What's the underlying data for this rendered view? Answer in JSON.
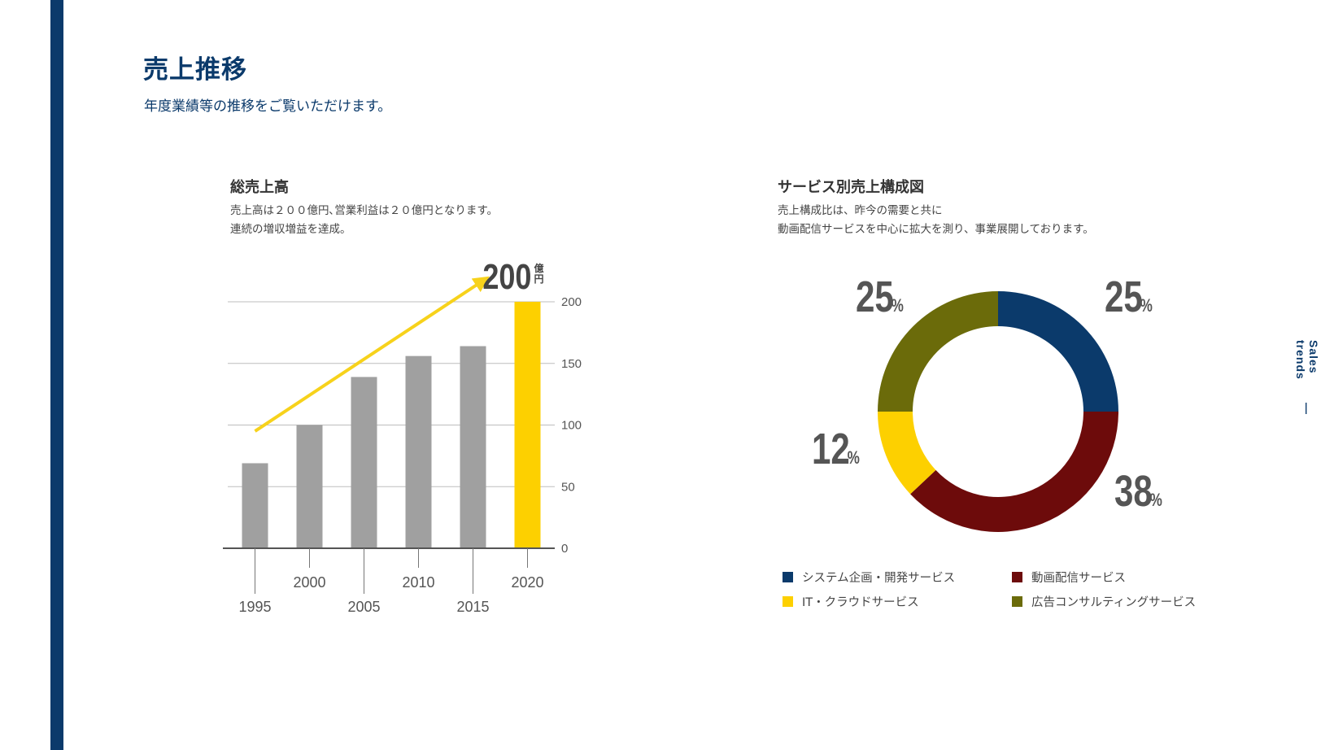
{
  "header": {
    "title": "売上推移",
    "subtitle": "年度業績等の推移をご覧いただけます。"
  },
  "side_tag": "Sales trends",
  "sections": {
    "sales": {
      "title": "総売上高",
      "desc": [
        "売上高は２００億円､営業利益は２０億円となります。",
        "連続の増収増益を達成。"
      ]
    },
    "composition": {
      "title": "サービス別売上構成図",
      "desc": [
        "売上構成比は、昨今の需要と共に",
        "動画配信サービスを中心に拡大を測り、事業展開しております。"
      ]
    }
  },
  "chart_data": [
    {
      "type": "bar",
      "title": "総売上高",
      "categories": [
        "1995",
        "2000",
        "2005",
        "2010",
        "2015",
        "2020"
      ],
      "values": [
        69,
        100,
        139,
        156,
        164,
        200
      ],
      "ylim": [
        0,
        200
      ],
      "yticks": [
        0,
        50,
        100,
        150,
        200
      ],
      "y_axis_position": "right",
      "unit": "億円",
      "grid": true,
      "highlight": {
        "category": "2020",
        "value_label": "200",
        "unit_line1": "億",
        "unit_line2": "円"
      },
      "trend_arrow": {
        "from_category": "1995",
        "from_value": 95,
        "to_category": "2015",
        "to_value": 217
      },
      "colors": {
        "bar": "#a0a0a0",
        "highlight": "#fdd000",
        "arrow": "#f7d21b",
        "grid": "#bdbdbd",
        "axis": "#555555"
      }
    },
    {
      "type": "pie",
      "style": "donut",
      "title": "サービス別売上構成図",
      "percent_symbol": "%",
      "slices": [
        {
          "name": "システム企画・開発サービス",
          "value": 25,
          "label": "25",
          "color": "#0b3a6b"
        },
        {
          "name": "動画配信サービス",
          "value": 38,
          "label": "38",
          "color": "#6d0b0b"
        },
        {
          "name": "IT・クラウドサービス",
          "value": 12,
          "label": "12",
          "color": "#fdd000"
        },
        {
          "name": "広告コンサルティングサービス",
          "value": 25,
          "label": "25",
          "color": "#6b6b0a"
        }
      ]
    }
  ]
}
